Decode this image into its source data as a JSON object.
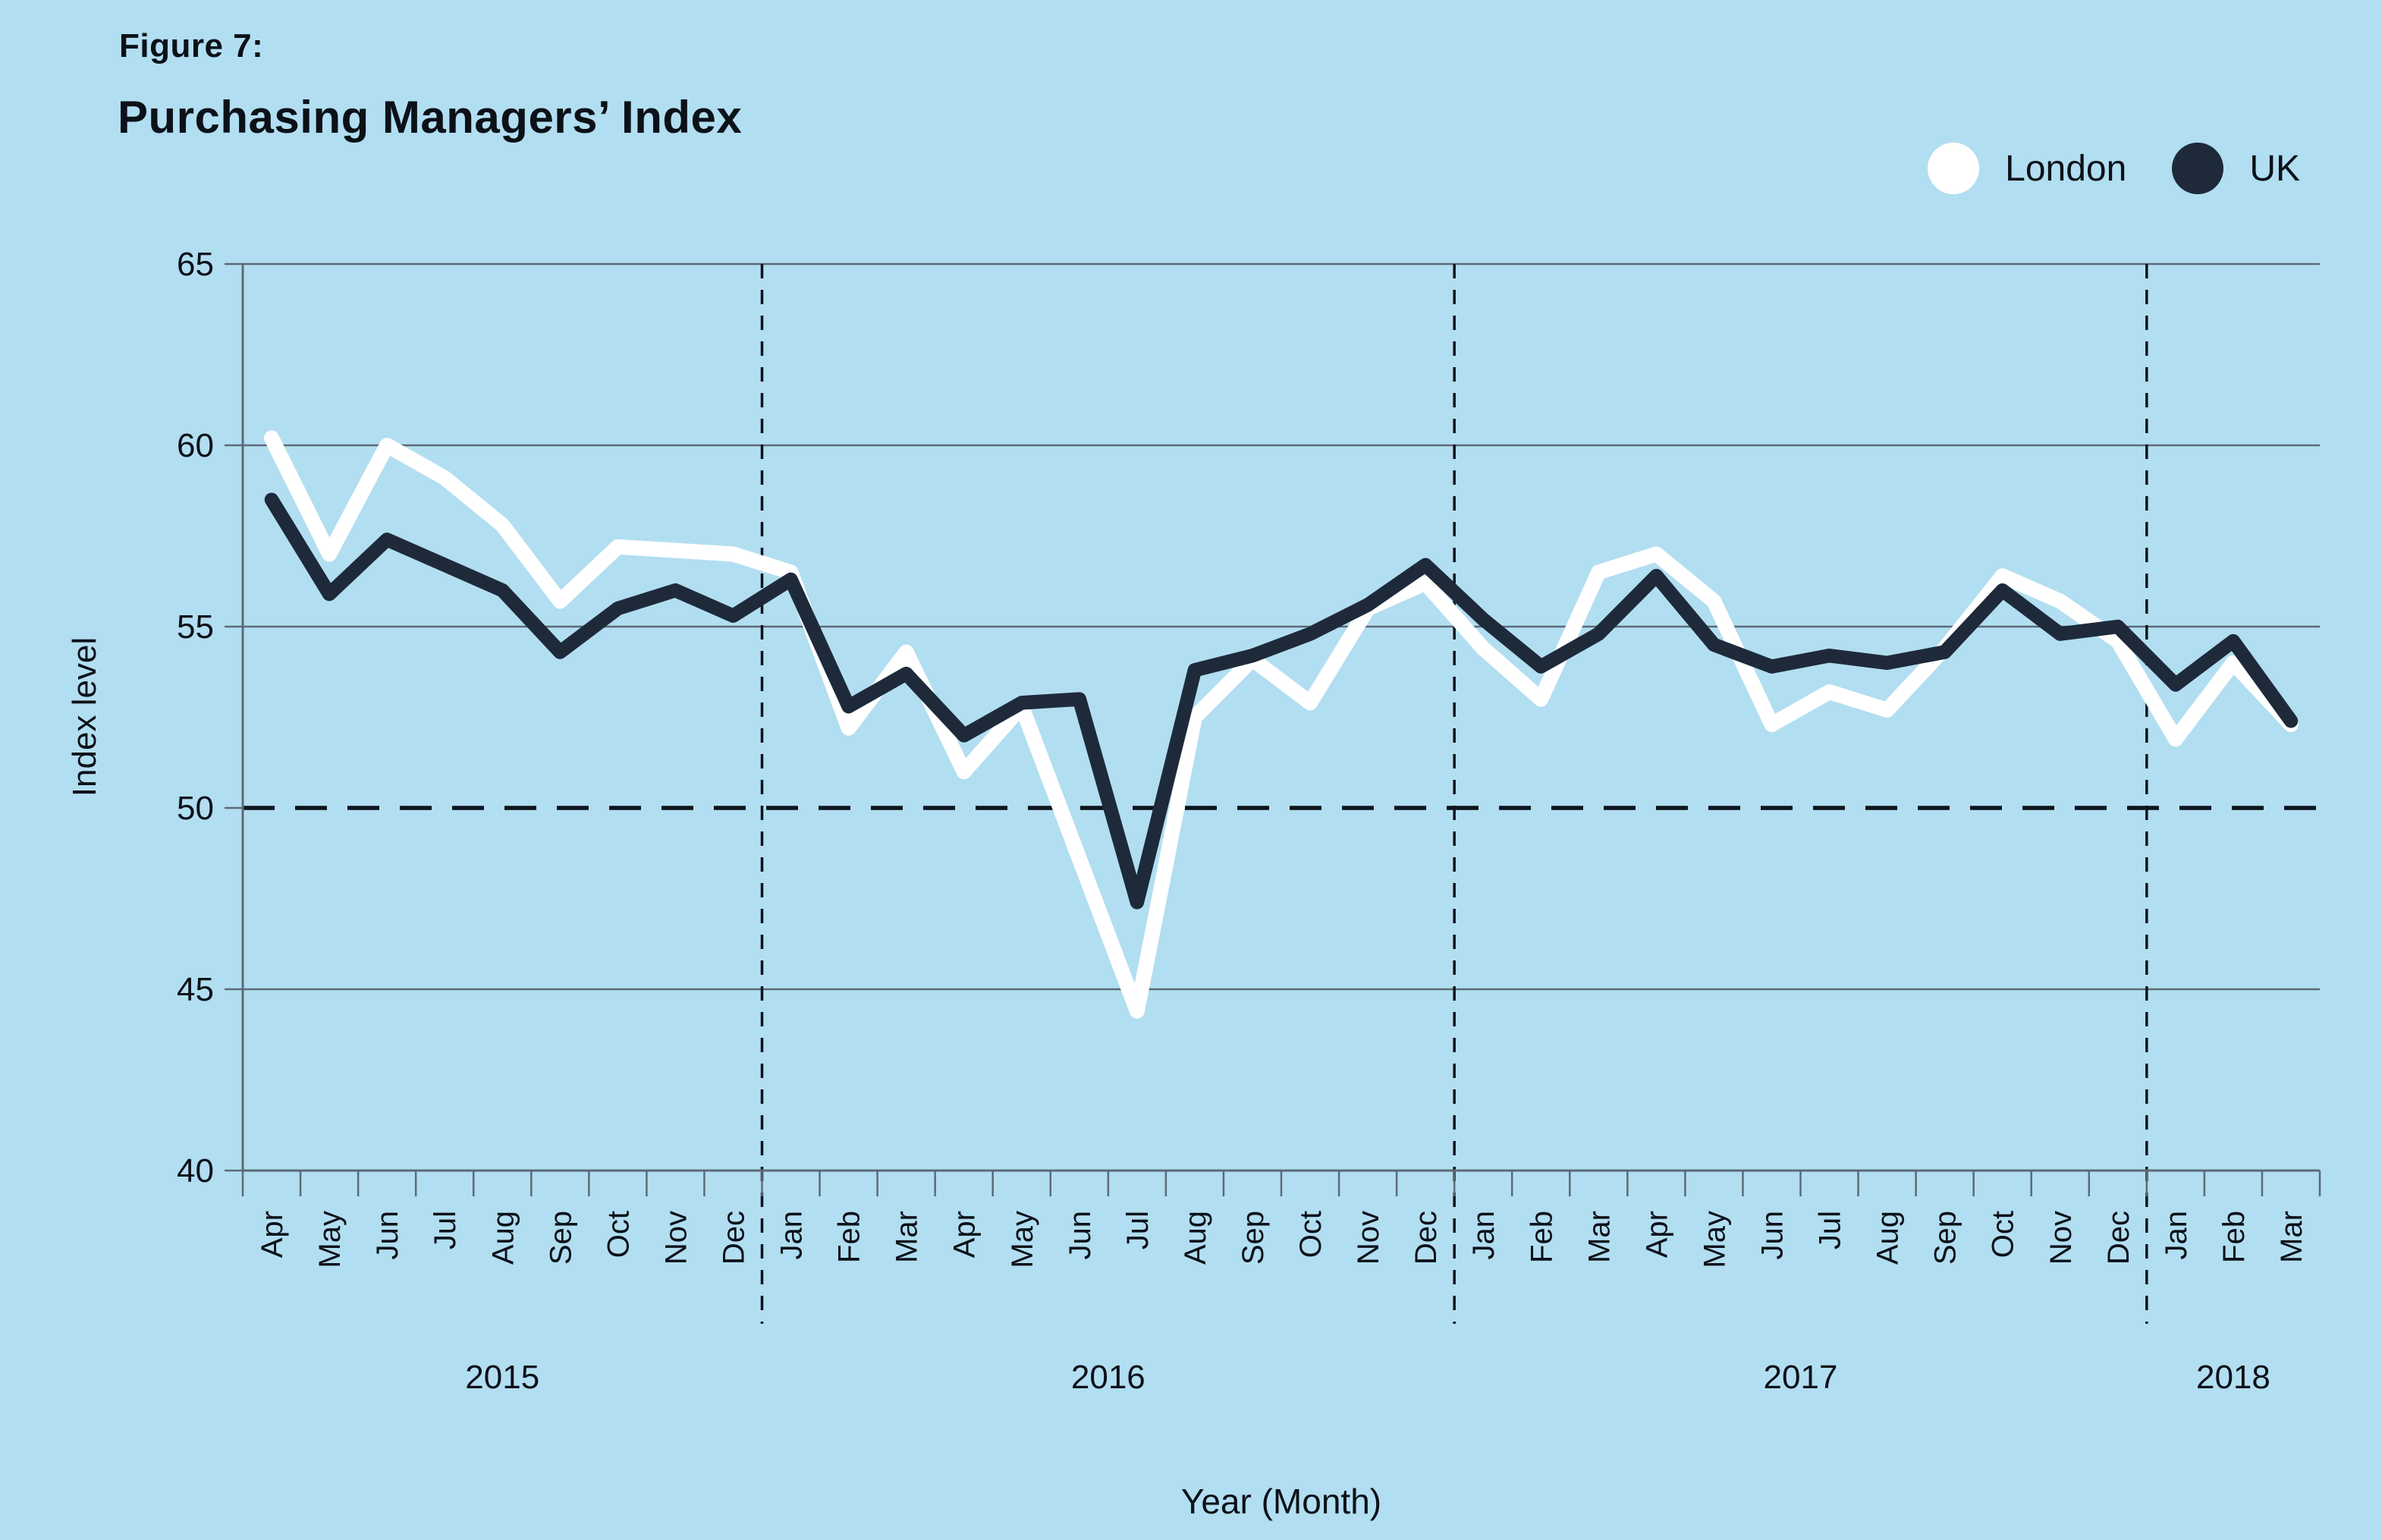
{
  "header": {
    "figure_label": "Figure 7:",
    "title": "Purchasing Managers’ Index"
  },
  "axes": {
    "y_label": "Index level",
    "x_label": "Year (Month)"
  },
  "colors": {
    "background": "#b2def1",
    "london_line": "#ffffff",
    "uk_line": "#1e2a3a",
    "gridline": "#5c6b76",
    "dashed_black": "#0d141d",
    "text": "#0c1118"
  },
  "chart_data": {
    "type": "line",
    "title": "Purchasing Managers’ Index",
    "xlabel": "Year (Month)",
    "ylabel": "Index level",
    "ylim": [
      40,
      65
    ],
    "y_ticks": [
      65,
      60,
      55,
      50,
      45,
      40
    ],
    "reference_line": 50,
    "grid": "horizontal",
    "legend_position": "top-right",
    "year_separators": "dashed vertical lines after each December",
    "years": [
      {
        "label": "2015",
        "months": [
          "Apr",
          "May",
          "Jun",
          "Jul",
          "Aug",
          "Sep",
          "Oct",
          "Nov",
          "Dec"
        ]
      },
      {
        "label": "2016",
        "months": [
          "Jan",
          "Feb",
          "Mar",
          "Apr",
          "May",
          "Jun",
          "Jul",
          "Aug",
          "Sep",
          "Oct",
          "Nov",
          "Dec"
        ]
      },
      {
        "label": "2017",
        "months": [
          "Jan",
          "Feb",
          "Mar",
          "Apr",
          "May",
          "Jun",
          "Jul",
          "Aug",
          "Sep",
          "Oct",
          "Nov",
          "Dec"
        ]
      },
      {
        "label": "2018",
        "months": [
          "Jan",
          "Feb",
          "Mar"
        ]
      }
    ],
    "series": [
      {
        "name": "London",
        "color": "#ffffff",
        "values": [
          60.2,
          57.0,
          60.0,
          59.1,
          57.8,
          55.7,
          57.2,
          57.1,
          57.0,
          56.5,
          52.2,
          54.3,
          51.0,
          52.8,
          48.6,
          44.4,
          52.5,
          54.1,
          52.9,
          55.5,
          56.2,
          54.4,
          53.0,
          56.5,
          57.0,
          55.7,
          52.3,
          53.2,
          52.7,
          54.4,
          56.4,
          55.7,
          54.6,
          51.9,
          54.0,
          52.3
        ]
      },
      {
        "name": "UK",
        "color": "#1e2a3a",
        "values": [
          58.5,
          55.9,
          57.4,
          56.7,
          56.0,
          54.3,
          55.5,
          56.0,
          55.3,
          56.3,
          52.8,
          53.7,
          52.0,
          52.9,
          53.0,
          47.4,
          53.8,
          54.2,
          54.8,
          55.6,
          56.7,
          55.2,
          53.9,
          54.8,
          56.4,
          54.5,
          53.9,
          54.2,
          54.0,
          54.3,
          56.0,
          54.8,
          55.0,
          53.4,
          54.6,
          52.4
        ]
      }
    ]
  }
}
